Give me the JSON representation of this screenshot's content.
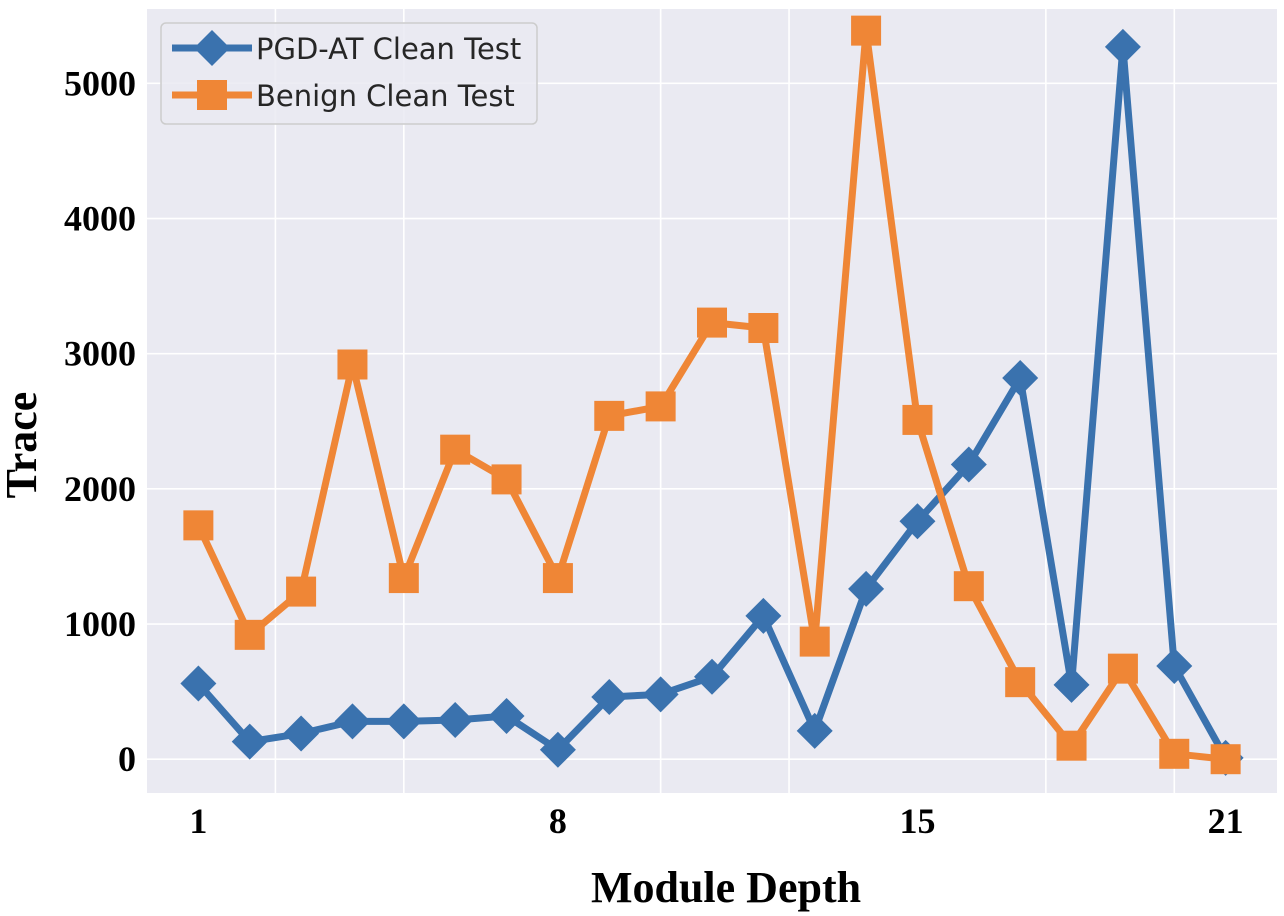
{
  "chart_data": {
    "type": "line",
    "title": "",
    "xlabel": "Module Depth",
    "ylabel": "Trace",
    "xlim": [
      0.0,
      22.0
    ],
    "ylim": [
      -250,
      5550
    ],
    "xticks": [
      1,
      8,
      15,
      21
    ],
    "xtick_labels": [
      "1",
      "8",
      "15",
      "21"
    ],
    "minor_xgrid": [
      2.5,
      5,
      10,
      12.5,
      17.5,
      20
    ],
    "yticks": [
      0,
      1000,
      2000,
      3000,
      4000,
      5000
    ],
    "ytick_labels": [
      "0",
      "1000",
      "2000",
      "3000",
      "4000",
      "5000"
    ],
    "grid": true,
    "legend_position": "upper-left",
    "x": [
      1,
      2,
      3,
      4,
      5,
      6,
      7,
      8,
      9,
      10,
      11,
      12,
      13,
      14,
      15,
      16,
      17,
      18,
      19,
      20,
      21
    ],
    "series": [
      {
        "name": "PGD-AT Clean Test",
        "color": "#3a72ae",
        "marker": "diamond",
        "values": [
          560,
          130,
          190,
          280,
          280,
          290,
          320,
          70,
          460,
          480,
          610,
          1060,
          210,
          1260,
          1760,
          2180,
          2820,
          550,
          5270,
          690,
          10
        ]
      },
      {
        "name": "Benign Clean Test",
        "color": "#ef8636",
        "marker": "square",
        "values": [
          1730,
          920,
          1240,
          2920,
          1340,
          2290,
          2070,
          1340,
          2540,
          2610,
          3230,
          3190,
          870,
          5390,
          2510,
          1280,
          570,
          100,
          670,
          40,
          0
        ]
      }
    ]
  }
}
